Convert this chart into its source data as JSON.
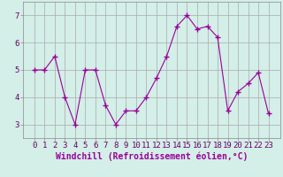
{
  "x": [
    0,
    1,
    2,
    3,
    4,
    5,
    6,
    7,
    8,
    9,
    10,
    11,
    12,
    13,
    14,
    15,
    16,
    17,
    18,
    19,
    20,
    21,
    22,
    23
  ],
  "y": [
    5.0,
    5.0,
    5.5,
    4.0,
    3.0,
    5.0,
    5.0,
    3.7,
    3.0,
    3.5,
    3.5,
    4.0,
    4.7,
    5.5,
    6.6,
    7.0,
    6.5,
    6.6,
    6.2,
    3.5,
    4.2,
    4.5,
    4.9,
    3.4
  ],
  "line_color": "#990099",
  "marker": "+",
  "marker_size": 4,
  "bg_color": "#d4eee8",
  "grid_color": "#aaaaaa",
  "xlabel": "Windchill (Refroidissement éolien,°C)",
  "ylabel": "",
  "ylim": [
    2.5,
    7.5
  ],
  "yticks": [
    3,
    4,
    5,
    6,
    7
  ],
  "xticks": [
    0,
    1,
    2,
    3,
    4,
    5,
    6,
    7,
    8,
    9,
    10,
    11,
    12,
    13,
    14,
    15,
    16,
    17,
    18,
    19,
    20,
    21,
    22,
    23
  ],
  "xlabel_fontsize": 7,
  "tick_fontsize": 6.5
}
